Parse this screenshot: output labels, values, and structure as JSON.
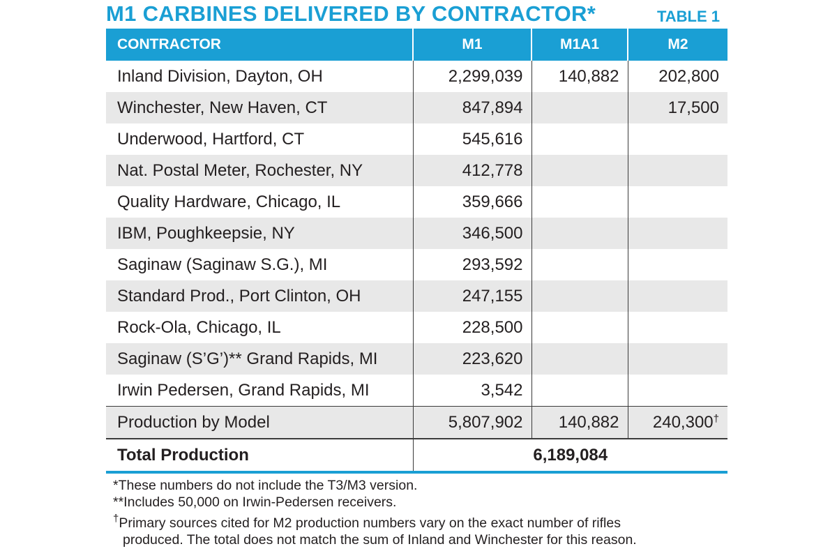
{
  "title": "M1 CARBINES DELIVERED BY CONTRACTOR*",
  "table_label": "TABLE 1",
  "headers": {
    "contractor": "CONTRACTOR",
    "m1": "M1",
    "m1a1": "M1A1",
    "m2": "M2"
  },
  "rows": [
    {
      "contractor": "Inland Division, Dayton, OH",
      "m1": "2,299,039",
      "m1a1": "140,882",
      "m2": "202,800"
    },
    {
      "contractor": "Winchester, New Haven, CT",
      "m1": "847,894",
      "m1a1": "",
      "m2": "17,500"
    },
    {
      "contractor": "Underwood, Hartford, CT",
      "m1": "545,616",
      "m1a1": "",
      "m2": ""
    },
    {
      "contractor": "Nat. Postal Meter, Rochester, NY",
      "m1": "412,778",
      "m1a1": "",
      "m2": ""
    },
    {
      "contractor": "Quality Hardware, Chicago, IL",
      "m1": "359,666",
      "m1a1": "",
      "m2": ""
    },
    {
      "contractor": "IBM, Poughkeepsie, NY",
      "m1": "346,500",
      "m1a1": "",
      "m2": ""
    },
    {
      "contractor": "Saginaw (Saginaw S.G.), MI",
      "m1": "293,592",
      "m1a1": "",
      "m2": ""
    },
    {
      "contractor": "Standard Prod., Port Clinton, OH",
      "m1": "247,155",
      "m1a1": "",
      "m2": ""
    },
    {
      "contractor": "Rock-Ola, Chicago, IL",
      "m1": "228,500",
      "m1a1": "",
      "m2": ""
    },
    {
      "contractor": "Saginaw (S’G’)** Grand Rapids, MI",
      "m1": "223,620",
      "m1a1": "",
      "m2": ""
    },
    {
      "contractor": "Irwin Pedersen, Grand Rapids, MI",
      "m1": "3,542",
      "m1a1": "",
      "m2": ""
    }
  ],
  "summary": {
    "label": "Production by Model",
    "m1": "5,807,902",
    "m1a1": "140,882",
    "m2": "240,300",
    "m2_mark": "†"
  },
  "total": {
    "label": "Total Production",
    "value": "6,189,084"
  },
  "notes": {
    "n1": "*These numbers do not include the T3/M3 version.",
    "n2": "**Includes 50,000 on Irwin-Pedersen receivers.",
    "n3_mark": "†",
    "n3a": "Primary sources cited for M2 production numbers vary on the exact number of rifles",
    "n3b": "produced. The total does not match the sum of Inland and Winchester for this reason."
  }
}
